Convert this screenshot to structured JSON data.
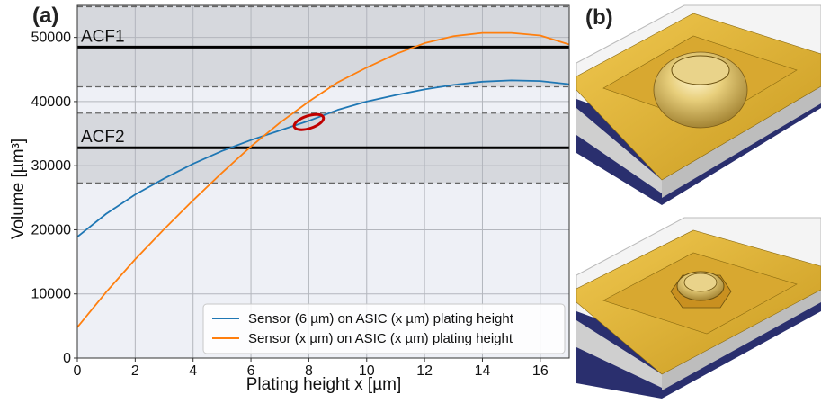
{
  "panels": {
    "left_label": "(a)",
    "right_label": "(b)"
  },
  "chart_data": {
    "type": "line",
    "xlabel": "Plating height x [µm]",
    "ylabel": "Volume [µm³]",
    "xlim": [
      0,
      17
    ],
    "ylim": [
      0,
      55000
    ],
    "xticks": [
      0,
      2,
      4,
      6,
      8,
      10,
      12,
      14,
      16
    ],
    "yticks": [
      0,
      10000,
      20000,
      30000,
      40000,
      50000
    ],
    "grid": true,
    "legend_position": "lower-right",
    "series": [
      {
        "name": "Sensor (6 µm) on ASIC (x µm) plating height",
        "color": "#1f77b4",
        "x": [
          0,
          1,
          2,
          3,
          4,
          5,
          6,
          7,
          8,
          9,
          10,
          11,
          12,
          13,
          14,
          15,
          16,
          17
        ],
        "y": [
          18900,
          22500,
          25500,
          28000,
          30300,
          32300,
          34000,
          35500,
          37000,
          38700,
          40000,
          41000,
          41900,
          42600,
          43100,
          43300,
          43200,
          42700
        ]
      },
      {
        "name": "Sensor (x µm) on ASIC (x µm) plating height",
        "color": "#ff7f0e",
        "x": [
          0,
          1,
          2,
          3,
          4,
          5,
          6,
          7,
          8,
          9,
          10,
          11,
          12,
          13,
          14,
          15,
          16,
          17
        ],
        "y": [
          4800,
          10300,
          15400,
          20100,
          24600,
          28900,
          33000,
          36700,
          40000,
          43000,
          45300,
          47400,
          49100,
          50200,
          50700,
          50700,
          50300,
          48900
        ]
      }
    ],
    "bands": [
      {
        "label": "ACF1",
        "center": 48500,
        "lower": 42300,
        "upper": 54800
      },
      {
        "label": "ACF2",
        "center": 32800,
        "lower": 27300,
        "upper": 38200
      }
    ],
    "highlight_ellipse": {
      "x": 8,
      "y": 36800,
      "color": "#c00000"
    }
  }
}
